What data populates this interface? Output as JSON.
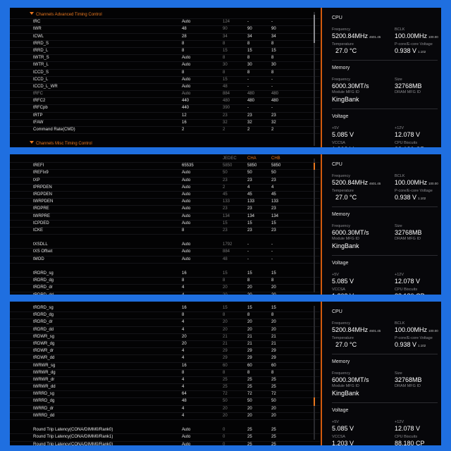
{
  "panels": [
    {
      "rows": [
        {
          "type": "section",
          "name": "Channels Advanced Timing Control"
        },
        {
          "name": "tRC",
          "value": "Auto",
          "c1": "124",
          "c2": "-",
          "c3": "-"
        },
        {
          "name": "tWR",
          "value": "48",
          "c1": "90",
          "c2": "90",
          "c3": "90"
        },
        {
          "name": "tCWL",
          "value": "28",
          "c1": "34",
          "c2": "34",
          "c3": "34"
        },
        {
          "name": "tRRD_S",
          "value": "8",
          "c1": "8",
          "c2": "8",
          "c3": "8"
        },
        {
          "name": "tRRD_L",
          "value": "8",
          "c1": "15",
          "c2": "15",
          "c3": "15"
        },
        {
          "name": "tWTR_S",
          "value": "Auto",
          "c1": "8",
          "c2": "8",
          "c3": "8"
        },
        {
          "name": "tWTR_L",
          "value": "Auto",
          "c1": "30",
          "c2": "30",
          "c3": "30"
        },
        {
          "name": "tCCD_S",
          "value": "8",
          "c1": "8",
          "c2": "8",
          "c3": "8"
        },
        {
          "name": "tCCD_L",
          "value": "Auto",
          "c1": "15",
          "c2": "-",
          "c3": "-"
        },
        {
          "name": "tCCD_L_WR",
          "value": "Auto",
          "c1": "48",
          "c2": "-",
          "c3": "-"
        },
        {
          "name": "tRFC",
          "value": "Auto",
          "c1": "884",
          "c2": "480",
          "c3": "480",
          "dim": true
        },
        {
          "name": "tRFC2",
          "value": "440",
          "c1": "480",
          "c2": "480",
          "c3": "480"
        },
        {
          "name": "tRFCpb",
          "value": "440",
          "c1": "390",
          "c2": "-",
          "c3": "-"
        },
        {
          "name": "tRTP",
          "value": "12",
          "c1": "23",
          "c2": "23",
          "c3": "23"
        },
        {
          "name": "tFAW",
          "value": "16",
          "c1": "32",
          "c2": "32",
          "c3": "32"
        },
        {
          "name": "Command Rate(CMD)",
          "value": "2",
          "c1": "2",
          "c2": "2",
          "c3": "2"
        },
        {
          "type": "blank"
        },
        {
          "type": "section",
          "name": "Channels Misc Timing Control"
        }
      ]
    },
    {
      "rows": [
        {
          "type": "header",
          "name": "",
          "value": "",
          "c1": "JEDEC",
          "c2": "CHA",
          "c3": "CHB"
        },
        {
          "name": "tREFI",
          "value": "65535",
          "c1": "5850",
          "c2": "5850",
          "c3": "5850"
        },
        {
          "name": "tREFIx9",
          "value": "Auto",
          "c1": "50",
          "c2": "50",
          "c3": "50"
        },
        {
          "name": "tXP",
          "value": "Auto",
          "c1": "23",
          "c2": "23",
          "c3": "23"
        },
        {
          "name": "tPRPDEN",
          "value": "Auto",
          "c1": "2",
          "c2": "4",
          "c3": "4"
        },
        {
          "name": "tRDPDEN",
          "value": "Auto",
          "c1": "45",
          "c2": "45",
          "c3": "45"
        },
        {
          "name": "tWRPDEN",
          "value": "Auto",
          "c1": "133",
          "c2": "133",
          "c3": "133"
        },
        {
          "name": "tRDPRE",
          "value": "Auto",
          "c1": "23",
          "c2": "23",
          "c3": "23"
        },
        {
          "name": "tWRPRE",
          "value": "Auto",
          "c1": "134",
          "c2": "134",
          "c3": "134"
        },
        {
          "name": "tCPDED",
          "value": "Auto",
          "c1": "15",
          "c2": "15",
          "c3": "15"
        },
        {
          "name": "tCKE",
          "value": "8",
          "c1": "23",
          "c2": "23",
          "c3": "23"
        },
        {
          "type": "blank"
        },
        {
          "name": "tXSDLL",
          "value": "Auto",
          "c1": "1792",
          "c2": "-",
          "c3": "-"
        },
        {
          "name": "tXS Offset",
          "value": "Auto",
          "c1": "884",
          "c2": "-",
          "c3": "-"
        },
        {
          "name": "tMOD",
          "value": "Auto",
          "c1": "48",
          "c2": "-",
          "c3": "-"
        },
        {
          "type": "blank"
        },
        {
          "name": "tRDRD_sg",
          "value": "16",
          "c1": "15",
          "c2": "15",
          "c3": "15"
        },
        {
          "name": "tRDRD_dg",
          "value": "8",
          "c1": "8",
          "c2": "8",
          "c3": "8"
        },
        {
          "name": "tRDRD_dr",
          "value": "4",
          "c1": "20",
          "c2": "20",
          "c3": "20"
        },
        {
          "name": "tRDRD_dd",
          "value": "4",
          "c1": "20",
          "c2": "20",
          "c3": "20"
        }
      ]
    },
    {
      "rows": [
        {
          "name": "tRDRD_sg",
          "value": "16",
          "c1": "15",
          "c2": "15",
          "c3": "15"
        },
        {
          "name": "tRDRD_dg",
          "value": "8",
          "c1": "8",
          "c2": "8",
          "c3": "8"
        },
        {
          "name": "tRDRD_dr",
          "value": "4",
          "c1": "20",
          "c2": "20",
          "c3": "20"
        },
        {
          "name": "tRDRD_dd",
          "value": "4",
          "c1": "20",
          "c2": "20",
          "c3": "20"
        },
        {
          "name": "tRDWR_sg",
          "value": "20",
          "c1": "21",
          "c2": "21",
          "c3": "21"
        },
        {
          "name": "tRDWR_dg",
          "value": "20",
          "c1": "21",
          "c2": "21",
          "c3": "21"
        },
        {
          "name": "tRDWR_dr",
          "value": "4",
          "c1": "29",
          "c2": "29",
          "c3": "29"
        },
        {
          "name": "tRDWR_dd",
          "value": "4",
          "c1": "29",
          "c2": "29",
          "c3": "29"
        },
        {
          "name": "tWRWR_sg",
          "value": "16",
          "c1": "60",
          "c2": "60",
          "c3": "60"
        },
        {
          "name": "tWRWR_dg",
          "value": "8",
          "c1": "8",
          "c2": "8",
          "c3": "8"
        },
        {
          "name": "tWRWR_dr",
          "value": "4",
          "c1": "25",
          "c2": "25",
          "c3": "25"
        },
        {
          "name": "tWRWR_dd",
          "value": "4",
          "c1": "25",
          "c2": "25",
          "c3": "25"
        },
        {
          "name": "tWRRD_sg",
          "value": "64",
          "c1": "72",
          "c2": "72",
          "c3": "72"
        },
        {
          "name": "tWRRD_dg",
          "value": "48",
          "c1": "50",
          "c2": "50",
          "c3": "50"
        },
        {
          "name": "tWRRD_dr",
          "value": "4",
          "c1": "20",
          "c2": "20",
          "c3": "20"
        },
        {
          "name": "tWRRD_dd",
          "value": "4",
          "c1": "20",
          "c2": "20",
          "c3": "20"
        },
        {
          "type": "blank"
        },
        {
          "name": "Round Trip Latency(CONA/DIMM0/Rank0)",
          "value": "Auto",
          "c1": "0",
          "c2": "25",
          "c3": "25"
        },
        {
          "name": "Round Trip Latency(CONA/DIMM0/Rank1)",
          "value": "Auto",
          "c1": "0",
          "c2": "25",
          "c3": "25"
        },
        {
          "name": "Round Trip Latency(CONA/DIMM0/Rank0)",
          "value": "Auto",
          "c1": "0",
          "c2": "25",
          "c3": "25"
        }
      ]
    }
  ],
  "monitor": {
    "cpu_title": "CPU",
    "freq_label": "Frequency",
    "freq_value": "5200.84MHz",
    "freq_sub": "4601.45",
    "bclk_label": "BCLK",
    "bclk_value": "100.00MHz",
    "bclk_sub": "100.00",
    "temp_label": "Temperature",
    "temp_value": "27.0 °C",
    "pcore_label": "P-core/E-core Voltage",
    "pcore_value": "0.938 V",
    "pcore_sub": "1.102",
    "mem_title": "Memory",
    "memfreq_label": "Frequency",
    "memfreq_value": "6000.30MT/s",
    "size_label": "Size",
    "size_value": "32768MB",
    "mfg_label": "Module MFG ID",
    "mfg_value": "KingBank",
    "dram_label": "DRAM MFG ID",
    "volt_title": "Voltage",
    "v5_label": "+5V",
    "v5_value": "5.085 V",
    "v12_label": "+12V",
    "v12_value": "12.078 V",
    "vccsa_label": "VCCSA",
    "vccsa_value": "1.203 V",
    "biscuits_label": "CPU Biscuits",
    "biscuits_value": "88.180 CP"
  },
  "scroll_positions": [
    0.05,
    0.6,
    0.85
  ]
}
